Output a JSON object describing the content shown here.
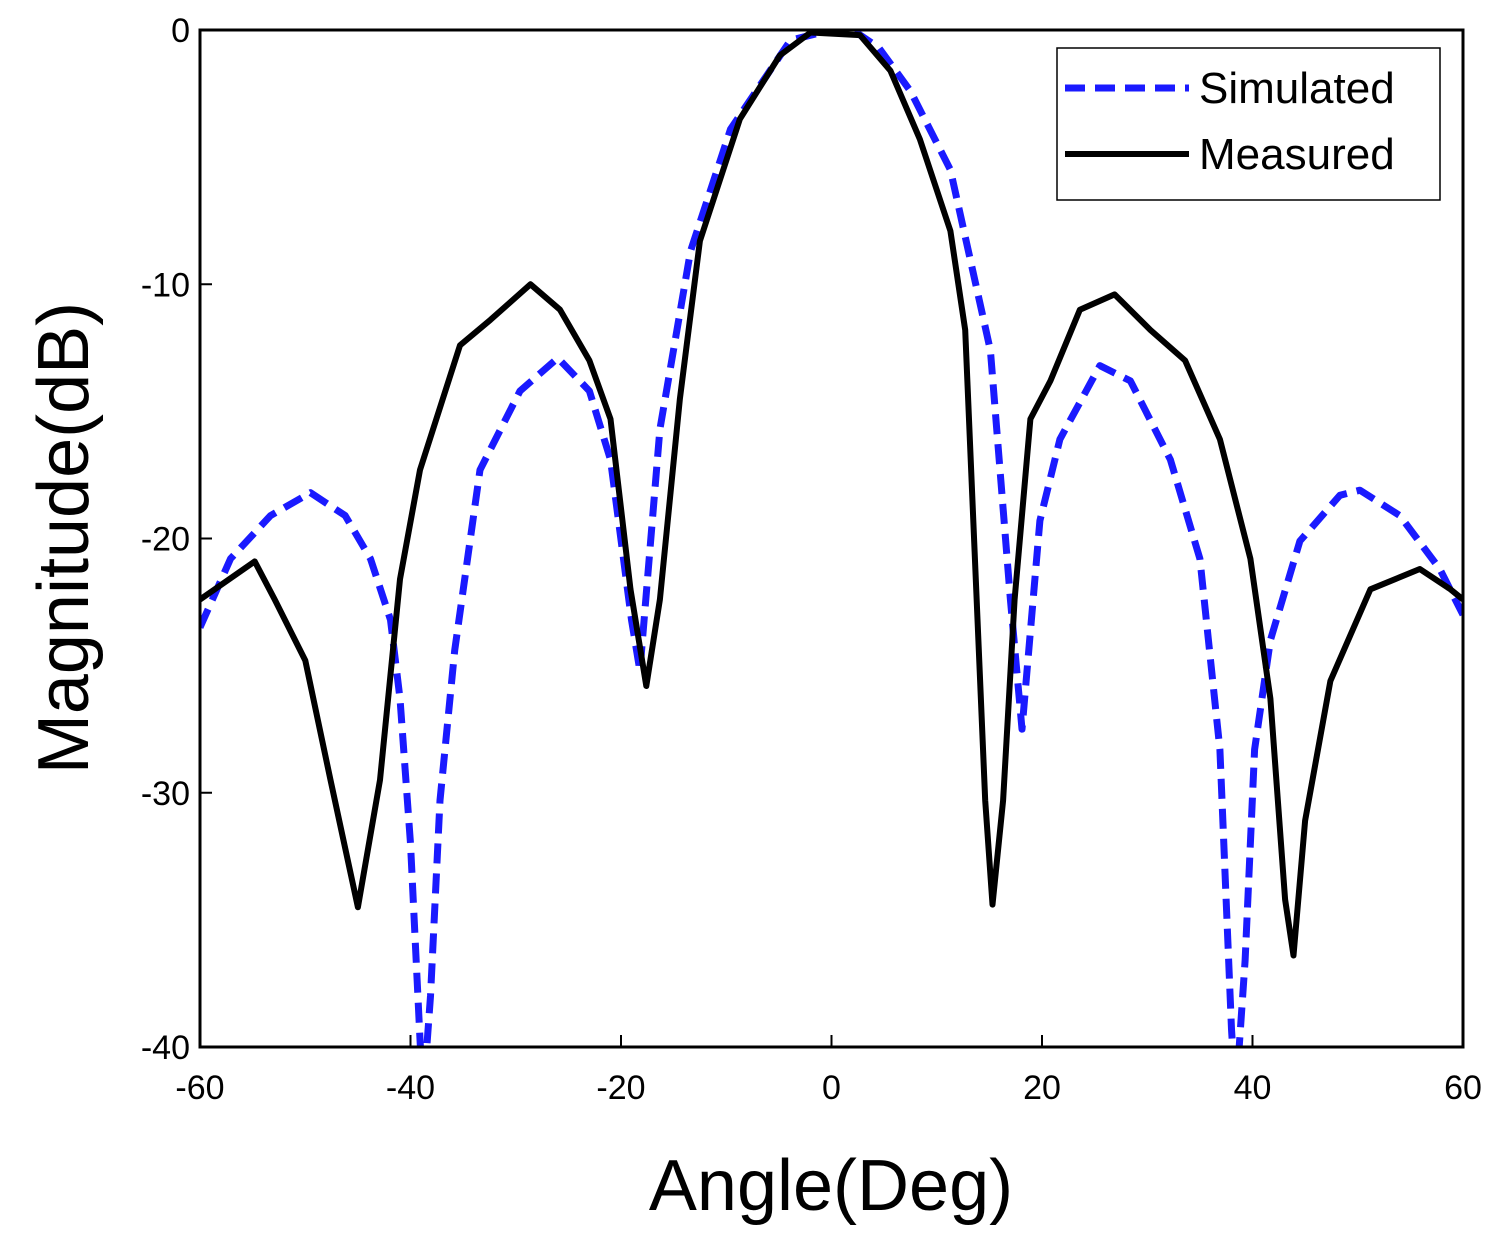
{
  "chart_data": {
    "type": "line",
    "x_label": "Angle(Deg)",
    "y_label": "Magnitude(dB)",
    "xlim": [
      -60,
      60
    ],
    "xticks": [
      -60,
      -40,
      -20,
      0,
      20,
      40,
      60
    ],
    "ylim": [
      -40,
      0
    ],
    "yticks": [
      -40,
      -30,
      -20,
      -10,
      0
    ],
    "legend": "top-right",
    "series": [
      {
        "name": "Simulated",
        "color": "#1a1aff",
        "dash": true,
        "x": [
          -60,
          -57.1,
          -53.3,
          -49.5,
          -46.2,
          -43.8,
          -41.9,
          -41,
          -40,
          -39.1,
          -38.8,
          -38.1,
          -37.2,
          -35.8,
          -33.4,
          -29.6,
          -26,
          -23,
          -21,
          -19,
          -18.2,
          -16.3,
          -13.4,
          -9.6,
          -3.9,
          0,
          2,
          4.5,
          7.5,
          11.3,
          15.1,
          17,
          18.1,
          19.8,
          21.7,
          25.5,
          28.4,
          32.2,
          35,
          36.9,
          38,
          38.4,
          39.3,
          40.2,
          41.7,
          44.5,
          48.3,
          50.2,
          54,
          57.8,
          60
        ],
        "values": [
          -23.5,
          -20.8,
          -19.1,
          -18.2,
          -19.1,
          -20.8,
          -23.2,
          -26.3,
          -32,
          -39.7,
          -42,
          -38,
          -30.3,
          -24.4,
          -17.3,
          -14.2,
          -12.9,
          -14.2,
          -16.9,
          -23.2,
          -25.2,
          -15.7,
          -8.7,
          -3.9,
          -0.4,
          0,
          0,
          -0.7,
          -2.4,
          -5.5,
          -12.6,
          -22.4,
          -27.5,
          -19.3,
          -16.1,
          -13.2,
          -13.8,
          -16.9,
          -20.8,
          -28.3,
          -39.3,
          -42,
          -36.6,
          -28.3,
          -24,
          -20.1,
          -18.3,
          -18.1,
          -19.1,
          -21.2,
          -23
        ]
      },
      {
        "name": "Measured",
        "color": "#000000",
        "dash": false,
        "x": [
          -60,
          -58.6,
          -54.8,
          -52.9,
          -50,
          -47.6,
          -45,
          -42.9,
          -41,
          -39.1,
          -35.3,
          -32.4,
          -28.6,
          -25.8,
          -23,
          -21,
          -19.1,
          -17.6,
          -16.3,
          -14.4,
          -12.5,
          -8.7,
          -4.9,
          -2,
          2.7,
          5.6,
          8.4,
          11.3,
          12.7,
          13.6,
          14.6,
          15.3,
          16.3,
          17.4,
          18.9,
          20.8,
          23.6,
          26.9,
          30.3,
          33.6,
          36.9,
          39.8,
          41.7,
          43.1,
          43.9,
          45,
          47.4,
          51.2,
          55.9,
          58.8,
          60
        ],
        "values": [
          -22.4,
          -22,
          -20.9,
          -22.4,
          -24.8,
          -29.5,
          -34.5,
          -29.5,
          -21.6,
          -17.3,
          -12.4,
          -11.4,
          -10,
          -11,
          -13,
          -15.3,
          -22,
          -25.8,
          -22.4,
          -14.5,
          -8.3,
          -3.5,
          -1,
          -0.1,
          -0.2,
          -1.6,
          -4.3,
          -7.9,
          -11.8,
          -20.5,
          -30.3,
          -34.4,
          -30.3,
          -22.4,
          -15.3,
          -13.8,
          -11,
          -10.4,
          -11.8,
          -13,
          -16.1,
          -20.8,
          -26.3,
          -34.2,
          -36.4,
          -31.1,
          -25.6,
          -22,
          -21.2,
          -22,
          -22.4
        ]
      }
    ]
  }
}
